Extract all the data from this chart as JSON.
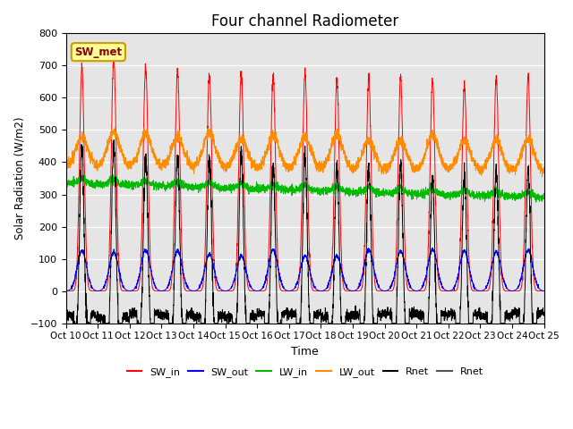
{
  "title": "Four channel Radiometer",
  "xlabel": "Time",
  "ylabel": "Solar Radiation (W/m2)",
  "annotation": "SW_met",
  "ylim": [
    -100,
    800
  ],
  "colors": {
    "SW_in": "#ff0000",
    "SW_out": "#0000ff",
    "LW_in": "#00bb00",
    "LW_out": "#ff8c00",
    "Rnet1": "#000000",
    "Rnet2": "#555555"
  },
  "background_color": "#e5e5e5",
  "title_fontsize": 12,
  "xtick_labels": [
    "Oct 10",
    "Oct 11",
    "Oct 12",
    "Oct 13",
    "Oct 14",
    "Oct 15",
    "Oct 16",
    "Oct 17",
    "Oct 18",
    "Oct 19",
    "Oct 20",
    "Oct 21",
    "Oct 22",
    "Oct 23",
    "Oct 24",
    "Oct 25"
  ],
  "legend_entries": [
    "SW_in",
    "SW_out",
    "LW_in",
    "LW_out",
    "Rnet",
    "Rnet"
  ]
}
